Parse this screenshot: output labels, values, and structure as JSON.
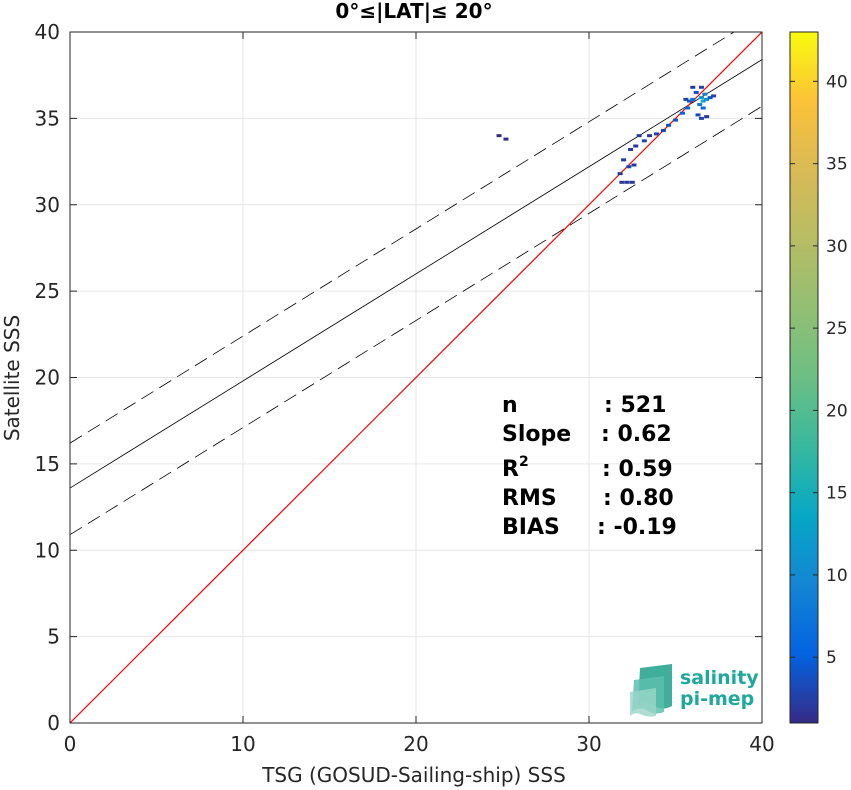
{
  "chart_data": {
    "type": "scatter",
    "title": "0°≤|LAT|≤ 20°",
    "xlabel": "TSG (GOSUD-Sailing-ship) SSS",
    "ylabel": "Satellite SSS",
    "xlim": [
      0,
      40
    ],
    "ylim": [
      0,
      40
    ],
    "xticks": [
      "0",
      "10",
      "20",
      "30",
      "40"
    ],
    "yticks": [
      "0",
      "5",
      "10",
      "15",
      "20",
      "25",
      "30",
      "35",
      "40"
    ],
    "grid": true,
    "lines": {
      "identity": {
        "slope": 1,
        "intercept": 0,
        "color": "#ff0000"
      },
      "fit": {
        "slope": 0.62,
        "intercept": 13.6,
        "color": "#000000"
      },
      "upper_bound": {
        "slope": 0.62,
        "intercept": 16.2,
        "style": "dashed"
      },
      "lower_bound": {
        "slope": 0.62,
        "intercept": 10.9,
        "style": "dashed"
      }
    },
    "density_points": [
      {
        "x": 24.8,
        "y": 34.0,
        "c": 1
      },
      {
        "x": 25.2,
        "y": 33.8,
        "c": 1
      },
      {
        "x": 31.8,
        "y": 31.8,
        "c": 2
      },
      {
        "x": 31.9,
        "y": 31.3,
        "c": 2
      },
      {
        "x": 32.2,
        "y": 31.3,
        "c": 2
      },
      {
        "x": 32.5,
        "y": 31.3,
        "c": 2
      },
      {
        "x": 32.3,
        "y": 32.2,
        "c": 3
      },
      {
        "x": 32.6,
        "y": 32.3,
        "c": 2
      },
      {
        "x": 32.0,
        "y": 32.6,
        "c": 2
      },
      {
        "x": 32.4,
        "y": 33.2,
        "c": 2
      },
      {
        "x": 32.7,
        "y": 33.4,
        "c": 2
      },
      {
        "x": 32.9,
        "y": 34.0,
        "c": 2
      },
      {
        "x": 33.2,
        "y": 33.7,
        "c": 3
      },
      {
        "x": 33.5,
        "y": 34.0,
        "c": 2
      },
      {
        "x": 33.9,
        "y": 34.1,
        "c": 3
      },
      {
        "x": 34.3,
        "y": 34.3,
        "c": 3
      },
      {
        "x": 34.6,
        "y": 34.6,
        "c": 4
      },
      {
        "x": 35.0,
        "y": 34.9,
        "c": 4
      },
      {
        "x": 35.4,
        "y": 35.3,
        "c": 5
      },
      {
        "x": 35.7,
        "y": 35.6,
        "c": 6
      },
      {
        "x": 35.8,
        "y": 36.0,
        "c": 5
      },
      {
        "x": 36.0,
        "y": 36.1,
        "c": 7
      },
      {
        "x": 36.3,
        "y": 35.2,
        "c": 3
      },
      {
        "x": 36.5,
        "y": 35.0,
        "c": 3
      },
      {
        "x": 36.8,
        "y": 35.1,
        "c": 2
      },
      {
        "x": 36.5,
        "y": 36.2,
        "c": 12
      },
      {
        "x": 36.6,
        "y": 36.0,
        "c": 14
      },
      {
        "x": 36.7,
        "y": 36.4,
        "c": 9
      },
      {
        "x": 36.8,
        "y": 36.1,
        "c": 10
      },
      {
        "x": 36.4,
        "y": 35.8,
        "c": 8
      },
      {
        "x": 36.6,
        "y": 35.6,
        "c": 6
      },
      {
        "x": 37.0,
        "y": 36.2,
        "c": 4
      },
      {
        "x": 37.2,
        "y": 36.3,
        "c": 3
      },
      {
        "x": 36.2,
        "y": 36.5,
        "c": 4
      },
      {
        "x": 36.5,
        "y": 36.8,
        "c": 3
      },
      {
        "x": 35.6,
        "y": 36.1,
        "c": 3
      },
      {
        "x": 36.0,
        "y": 36.8,
        "c": 2
      }
    ],
    "colorbar": {
      "range": [
        1,
        43
      ],
      "ticks": [
        "5",
        "10",
        "15",
        "20",
        "25",
        "30",
        "35",
        "40"
      ],
      "colormap": "parula"
    }
  },
  "stats": {
    "n_label": "n",
    "n_value": ": 521",
    "slope_label": "Slope",
    "slope_value": ": 0.62",
    "r2_label": "R",
    "r2_sup": "2",
    "r2_value": ": 0.59",
    "rms_label": "RMS",
    "rms_value": ": 0.80",
    "bias_label": "BIAS",
    "bias_value": ": -0.19"
  },
  "logo": {
    "line1": "salinity",
    "line2": "pi-mep",
    "color": "#1fa89b"
  }
}
